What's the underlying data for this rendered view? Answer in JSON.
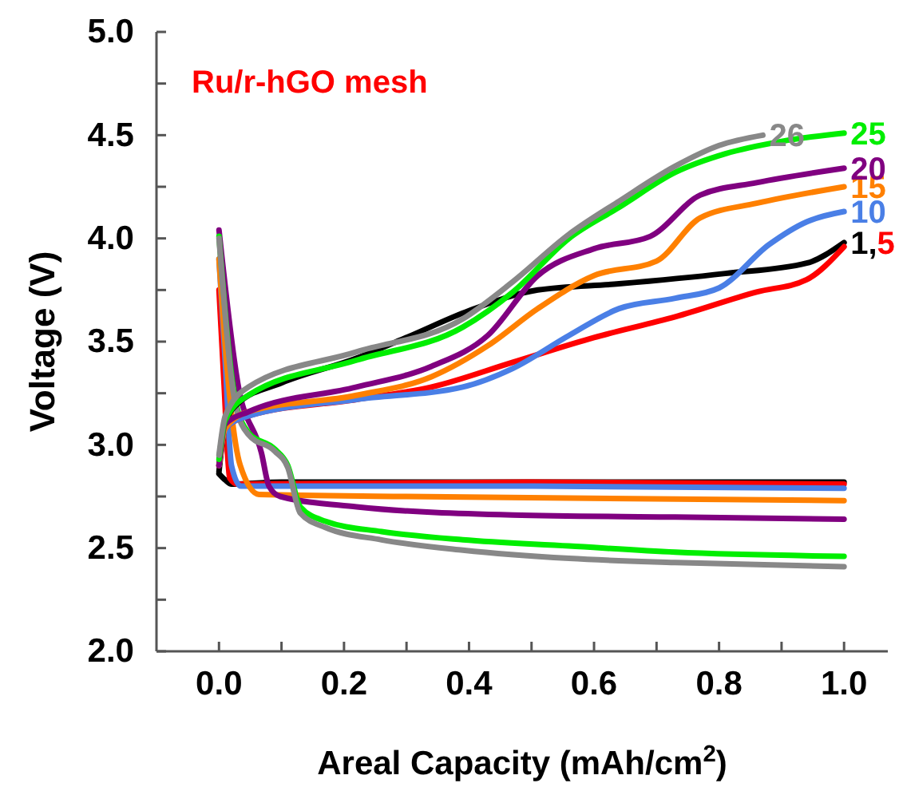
{
  "chart_data": {
    "type": "line",
    "title": "Ru/r-hGO mesh",
    "xlabel": "Areal Capacity (mAh/cm$^{2}$)",
    "ylabel": "Voltage (V)",
    "xlim": [
      -0.1,
      1.07
    ],
    "xticks": [
      {
        "value": 0,
        "label": "0.0"
      },
      {
        "value": 0.1,
        "label": null
      },
      {
        "value": 0.2,
        "label": "0.2"
      },
      {
        "value": 0.3,
        "label": null
      },
      {
        "value": 0.4,
        "label": "0.4"
      },
      {
        "value": 0.5,
        "label": null
      },
      {
        "value": 0.6,
        "label": "0.6"
      },
      {
        "value": 0.7,
        "label": null
      },
      {
        "value": 0.8,
        "label": "0.8"
      },
      {
        "value": 0.9,
        "label": null
      },
      {
        "value": 1,
        "label": "1.0"
      }
    ],
    "ylim": [
      2.0,
      5.0
    ],
    "yticks": [
      {
        "value": 2,
        "label": "2.0"
      },
      {
        "value": 2.25,
        "label": null
      },
      {
        "value": 2.5,
        "label": "2.5"
      },
      {
        "value": 2.75,
        "label": null
      },
      {
        "value": 3,
        "label": "3.0"
      },
      {
        "value": 3.25,
        "label": null
      },
      {
        "value": 3.5,
        "label": "3.5"
      },
      {
        "value": 3.75,
        "label": null
      },
      {
        "value": 4,
        "label": "4.0"
      },
      {
        "value": 4.25,
        "label": null
      },
      {
        "value": 4.5,
        "label": "4.5"
      },
      {
        "value": 4.75,
        "label": null
      },
      {
        "value": 5,
        "label": "5.0"
      }
    ],
    "grid": false,
    "marker": "none",
    "line_style": "solid",
    "series": [
      {
        "color": "#000000",
        "x": [
          0,
          0.01,
          0.02,
          0.1,
          0.5,
          1.0
        ],
        "values": [
          2.86,
          2.83,
          2.81,
          2.82,
          null,
          2.82
        ]
      },
      {
        "color": "#ff0000",
        "x": [
          0,
          0.008,
          0.017,
          0.03,
          0.5,
          1.0
        ],
        "values": [
          3.75,
          3.3,
          2.84,
          2.81,
          2.82,
          2.81
        ]
      },
      {
        "color": "#4a7fe6",
        "x": [
          0,
          0.01,
          0.02,
          0.035,
          0.5,
          1.0
        ],
        "values": [
          3.9,
          3.4,
          2.9,
          2.8,
          2.8,
          2.79
        ]
      },
      {
        "color": "#ff8000",
        "x": [
          0,
          0.015,
          0.034,
          0.064,
          0.3,
          1.0
        ],
        "values": [
          3.9,
          3.3,
          2.9,
          2.76,
          2.75,
          2.73
        ]
      },
      {
        "color": "#800080",
        "x": [
          0,
          0.03,
          0.068,
          0.08,
          0.098,
          0.22,
          0.47,
          0.73,
          1.0
        ],
        "values": [
          4.04,
          3.3,
          2.96,
          2.8,
          2.75,
          2.7,
          2.66,
          2.65,
          2.64
        ]
      },
      {
        "color": "#00ee00",
        "x": [
          0,
          0.026,
          0.047,
          0.089,
          0.11,
          0.13,
          0.17,
          0.26,
          0.39,
          0.56,
          0.73,
          1.0
        ],
        "values": [
          4.01,
          3.22,
          3.06,
          2.98,
          2.9,
          2.7,
          2.63,
          2.58,
          2.54,
          2.51,
          2.48,
          2.46
        ]
      },
      {
        "color": "#888888",
        "x": [
          0,
          0.026,
          0.047,
          0.089,
          0.11,
          0.13,
          0.17,
          0.26,
          0.39,
          0.56,
          0.73,
          1.0
        ],
        "values": [
          4.0,
          3.2,
          3.05,
          2.97,
          2.89,
          2.67,
          2.6,
          2.54,
          2.49,
          2.45,
          2.43,
          2.41
        ]
      },
      {
        "name": "1,",
        "color": "#000000",
        "x": [
          0,
          0.01,
          0.03,
          0.1,
          0.22,
          0.3,
          0.4,
          0.51,
          0.64,
          0.81,
          0.94,
          1.0
        ],
        "values": [
          2.87,
          3.1,
          3.2,
          3.3,
          3.42,
          3.52,
          3.65,
          3.75,
          3.78,
          3.83,
          3.88,
          3.98
        ]
      },
      {
        "name": "5",
        "color": "#ff0000",
        "x": [
          0,
          0.01,
          0.047,
          0.22,
          0.34,
          0.47,
          0.6,
          0.73,
          0.86,
          0.94,
          1.0
        ],
        "values": [
          2.9,
          3.08,
          3.14,
          3.22,
          3.28,
          3.4,
          3.52,
          3.62,
          3.74,
          3.8,
          3.96
        ]
      },
      {
        "name": "10",
        "color": "#4a7fe6",
        "x": [
          0,
          0.01,
          0.047,
          0.22,
          0.39,
          0.47,
          0.56,
          0.64,
          0.73,
          0.8,
          0.88,
          0.94,
          1.0
        ],
        "values": [
          2.9,
          3.08,
          3.14,
          3.22,
          3.28,
          3.37,
          3.53,
          3.66,
          3.71,
          3.76,
          3.97,
          4.08,
          4.13
        ]
      },
      {
        "name": "15",
        "color": "#ff8000",
        "x": [
          0,
          0.01,
          0.047,
          0.22,
          0.34,
          0.43,
          0.51,
          0.6,
          0.7,
          0.77,
          0.86,
          1.0
        ],
        "values": [
          2.9,
          3.08,
          3.16,
          3.24,
          3.33,
          3.48,
          3.66,
          3.82,
          3.89,
          4.1,
          4.17,
          4.25
        ]
      },
      {
        "name": "20",
        "color": "#800080",
        "x": [
          0,
          0.01,
          0.047,
          0.22,
          0.34,
          0.43,
          0.51,
          0.6,
          0.69,
          0.77,
          0.86,
          1.0
        ],
        "values": [
          2.9,
          3.1,
          3.16,
          3.28,
          3.38,
          3.53,
          3.82,
          3.95,
          4.01,
          4.21,
          4.27,
          4.34
        ]
      },
      {
        "name": "25",
        "color": "#00ee00",
        "x": [
          0,
          0.01,
          0.047,
          0.22,
          0.39,
          0.47,
          0.56,
          0.64,
          0.73,
          0.81,
          0.9,
          1.0
        ],
        "values": [
          2.93,
          3.12,
          3.24,
          3.41,
          3.57,
          3.74,
          4.0,
          4.15,
          4.32,
          4.41,
          4.47,
          4.51
        ]
      },
      {
        "name": "26",
        "color": "#888888",
        "x": [
          0,
          0.01,
          0.047,
          0.22,
          0.39,
          0.47,
          0.56,
          0.64,
          0.73,
          0.8,
          0.87
        ],
        "values": [
          2.95,
          3.14,
          3.28,
          3.45,
          3.61,
          3.79,
          4.02,
          4.18,
          4.35,
          4.45,
          4.5
        ]
      }
    ]
  }
}
